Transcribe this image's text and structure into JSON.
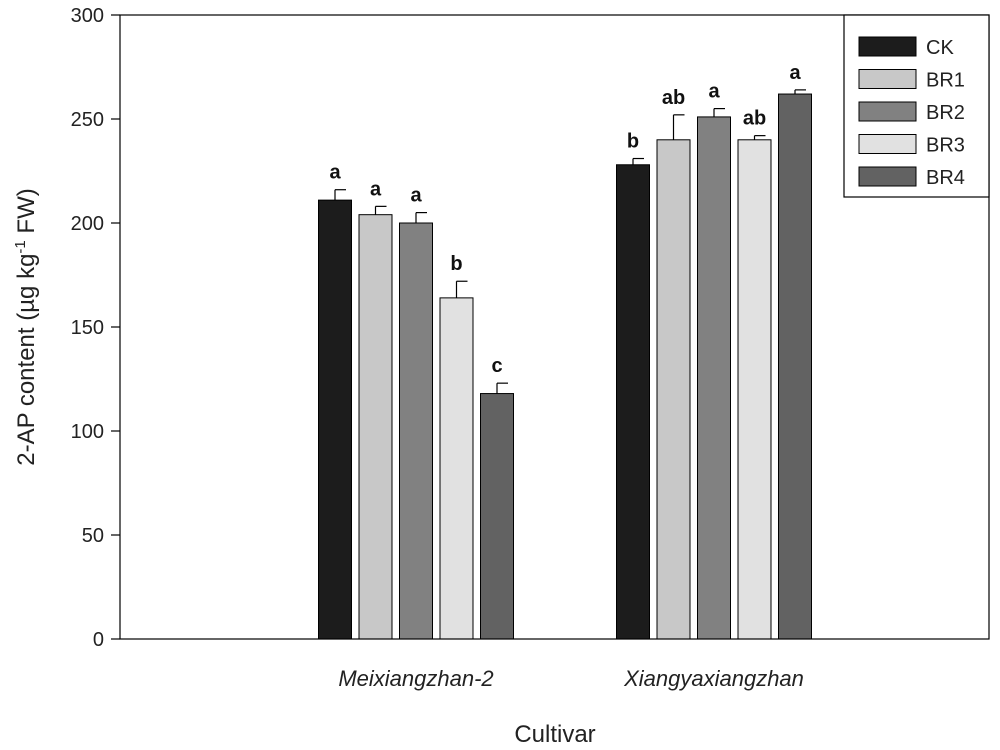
{
  "chart_data": {
    "type": "bar",
    "title": "",
    "xlabel": "Cultivar",
    "ylabel": {
      "prefix": "2-AP content (µg kg",
      "superscript": "-1",
      "suffix": " FW)"
    },
    "ylim": [
      0,
      300
    ],
    "yticks": [
      "0",
      "50",
      "100",
      "150",
      "200",
      "250",
      "300"
    ],
    "categories": [
      "Meixiangzhan-2",
      "Xiangyaxiangzhan"
    ],
    "legend_position": "top-right",
    "series": [
      {
        "name": "CK",
        "color": "#1c1c1c",
        "values": [
          211,
          228
        ],
        "errors": [
          5,
          3
        ],
        "sig": [
          "a",
          "b"
        ]
      },
      {
        "name": "BR1",
        "color": "#c8c8c8",
        "values": [
          204,
          240
        ],
        "errors": [
          4,
          12
        ],
        "sig": [
          "a",
          "ab"
        ]
      },
      {
        "name": "BR2",
        "color": "#818181",
        "values": [
          200,
          251
        ],
        "errors": [
          5,
          4
        ],
        "sig": [
          "a",
          "a"
        ]
      },
      {
        "name": "BR3",
        "color": "#e1e1e1",
        "values": [
          164,
          240
        ],
        "errors": [
          8,
          2
        ],
        "sig": [
          "b",
          "ab"
        ]
      },
      {
        "name": "BR4",
        "color": "#626262",
        "values": [
          118,
          262
        ],
        "errors": [
          5,
          2
        ],
        "sig": [
          "c",
          "a"
        ]
      }
    ]
  }
}
